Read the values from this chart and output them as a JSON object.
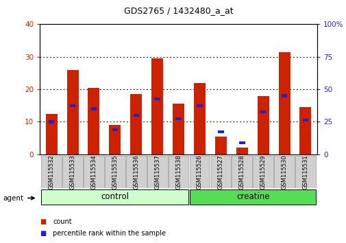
{
  "title": "GDS2765 / 1432480_a_at",
  "categories": [
    "GSM115532",
    "GSM115533",
    "GSM115534",
    "GSM115535",
    "GSM115536",
    "GSM115537",
    "GSM115538",
    "GSM115526",
    "GSM115527",
    "GSM115528",
    "GSM115529",
    "GSM115530",
    "GSM115531"
  ],
  "count_values": [
    12.5,
    26.0,
    20.5,
    9.0,
    18.5,
    29.5,
    15.5,
    22.0,
    5.5,
    2.0,
    18.0,
    31.5,
    14.5
  ],
  "percentile_values": [
    25.0,
    37.5,
    35.0,
    18.75,
    30.0,
    42.5,
    27.5,
    37.5,
    17.5,
    8.75,
    32.5,
    45.0,
    26.25
  ],
  "count_color": "#cc2200",
  "percentile_color": "#2222cc",
  "bar_width": 0.55,
  "ylim_left": [
    0,
    40
  ],
  "ylim_right": [
    0,
    100
  ],
  "yticks_left": [
    0,
    10,
    20,
    30,
    40
  ],
  "yticks_right": [
    0,
    25,
    50,
    75,
    100
  ],
  "ytick_labels_right": [
    "0",
    "25",
    "50",
    "75",
    "100%"
  ],
  "grid_color": "black",
  "control_color": "#ccffcc",
  "creatine_color": "#55dd55",
  "group_label_control": "control",
  "group_label_creatine": "creatine",
  "agent_label": "agent",
  "legend_count": "count",
  "legend_percentile": "percentile rank within the sample",
  "tick_color_left": "#cc2200",
  "tick_color_right": "#2222cc",
  "n_control": 7,
  "n_creatine": 6
}
